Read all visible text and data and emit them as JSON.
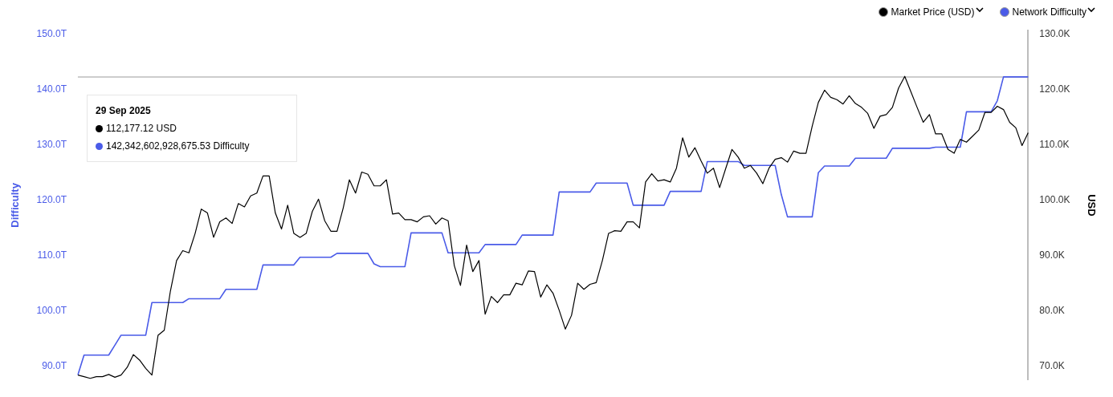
{
  "chart_data": {
    "type": "line",
    "categories": [
      null,
      null,
      null,
      null,
      null,
      null,
      null,
      null,
      null,
      null,
      null,
      null,
      null,
      null,
      null,
      null,
      null,
      null,
      null,
      null,
      null,
      null,
      null,
      null,
      null,
      null,
      null,
      null,
      null,
      null,
      null,
      null,
      null,
      null,
      null,
      null,
      null,
      null,
      null,
      null,
      null,
      null,
      null,
      null,
      null,
      null,
      null,
      null,
      null,
      null,
      null,
      null,
      null,
      null,
      null,
      null,
      null,
      null,
      null,
      null,
      null,
      null,
      null,
      null,
      null,
      null,
      null,
      null,
      null,
      null,
      null,
      null,
      null,
      null,
      null,
      null,
      null,
      null,
      null,
      null,
      null,
      null,
      null,
      null,
      null,
      null,
      null,
      null,
      null,
      null,
      null,
      null,
      null,
      null,
      null,
      null,
      null,
      null,
      null,
      null,
      null,
      null,
      null,
      null,
      null,
      null,
      null,
      null,
      null,
      null,
      null,
      null,
      null,
      null,
      null,
      null,
      null,
      null,
      null,
      null,
      null,
      null,
      null,
      null,
      null,
      null,
      null,
      null,
      null,
      null,
      null,
      null,
      null,
      null,
      null,
      null,
      null,
      null,
      null,
      null,
      null,
      null,
      null,
      null,
      null,
      null,
      null,
      null,
      null,
      null,
      null,
      null,
      null,
      null,
      null
    ],
    "series": [
      {
        "name": "Market Price (USD)",
        "color": "#000000",
        "axis": "y2",
        "values": [
          68.4,
          68.1,
          67.8,
          68.1,
          68.1,
          68.5,
          68.0,
          68.4,
          69.8,
          72.1,
          71.1,
          69.6,
          68.4,
          75.6,
          76.5,
          83.6,
          89.1,
          90.9,
          90.5,
          94.0,
          98.4,
          97.7,
          93.3,
          96.1,
          96.8,
          95.8,
          99.4,
          98.8,
          100.8,
          101.3,
          104.4,
          104.4,
          97.7,
          94.8,
          99.1,
          94.0,
          93.3,
          94.0,
          98.0,
          100.2,
          96.3,
          94.4,
          94.4,
          98.6,
          103.7,
          101.3,
          105.1,
          104.7,
          102.6,
          102.6,
          103.7,
          97.5,
          97.7,
          96.5,
          96.5,
          96.1,
          97.0,
          97.2,
          95.7,
          96.8,
          96.3,
          88.2,
          84.6,
          91.9,
          87.1,
          89.1,
          79.4,
          82.6,
          81.5,
          82.9,
          82.9,
          85.0,
          84.7,
          87.2,
          87.1,
          82.5,
          84.7,
          83.2,
          80.1,
          76.7,
          79.2,
          85.0,
          83.9,
          84.8,
          85.1,
          89.1,
          94.0,
          94.5,
          94.4,
          96.1,
          96.1,
          95.0,
          103.3,
          104.8,
          103.5,
          103.7,
          103.3,
          105.8,
          111.3,
          107.8,
          109.5,
          107.1,
          104.9,
          105.8,
          102.3,
          105.8,
          109.2,
          107.8,
          105.8,
          106.3,
          104.9,
          103.0,
          105.8,
          107.4,
          107.7,
          106.9,
          108.9,
          108.5,
          108.5,
          113.4,
          117.7,
          119.9,
          118.6,
          118.2,
          117.4,
          118.9,
          117.5,
          116.8,
          115.7,
          113.0,
          115.2,
          115.5,
          116.8,
          120.3,
          122.4,
          119.6,
          116.8,
          114.1,
          115.5,
          112.0,
          112.0,
          109.2,
          108.5,
          111.0,
          110.5,
          111.6,
          112.7,
          115.9,
          115.9,
          117.0,
          116.4,
          114.1,
          113.1,
          109.9,
          112.2
        ]
      },
      {
        "name": "Network Difficulty",
        "color": "#4a5be8",
        "axis": "y",
        "values": [
          88.4,
          92.0,
          92.0,
          92.0,
          92.0,
          92.0,
          93.8,
          95.6,
          95.6,
          95.6,
          95.6,
          95.6,
          101.5,
          101.5,
          101.5,
          101.5,
          101.5,
          101.5,
          102.2,
          102.2,
          102.2,
          102.2,
          102.2,
          102.2,
          103.9,
          103.9,
          103.9,
          103.9,
          103.9,
          103.9,
          108.3,
          108.3,
          108.3,
          108.3,
          108.3,
          108.3,
          109.7,
          109.7,
          109.7,
          109.7,
          109.7,
          109.7,
          110.4,
          110.4,
          110.4,
          110.4,
          110.4,
          110.4,
          108.5,
          108.0,
          108.0,
          108.0,
          108.0,
          108.0,
          114.1,
          114.1,
          114.1,
          114.1,
          114.1,
          114.1,
          110.5,
          110.5,
          110.5,
          110.5,
          110.5,
          110.5,
          112.0,
          112.0,
          112.0,
          112.0,
          112.0,
          112.0,
          113.7,
          113.7,
          113.7,
          113.7,
          113.7,
          113.7,
          121.5,
          121.5,
          121.5,
          121.5,
          121.5,
          121.5,
          123.1,
          123.1,
          123.1,
          123.1,
          123.1,
          123.1,
          119.1,
          119.1,
          119.1,
          119.1,
          119.1,
          119.1,
          121.6,
          121.6,
          121.6,
          121.6,
          121.6,
          121.6,
          127.0,
          127.0,
          127.0,
          127.0,
          127.0,
          127.0,
          126.3,
          126.3,
          126.3,
          126.3,
          126.3,
          126.3,
          121.0,
          117.0,
          117.0,
          117.0,
          117.0,
          117.0,
          125.0,
          126.2,
          126.2,
          126.2,
          126.2,
          126.2,
          127.6,
          127.6,
          127.6,
          127.6,
          127.6,
          127.6,
          129.4,
          129.4,
          129.4,
          129.4,
          129.4,
          129.4,
          129.4,
          129.6,
          129.6,
          129.6,
          129.6,
          129.6,
          136.0,
          136.0,
          136.0,
          136.0,
          136.0,
          138.0,
          142.3,
          142.3,
          142.3,
          142.3,
          142.3
        ]
      }
    ],
    "ylabel": "Difficulty",
    "y2label": "USD",
    "ylim": [
      87.5,
      150.7
    ],
    "yticks": [
      {
        "value": 90,
        "label": "90.0T"
      },
      {
        "value": 100,
        "label": "100.0T"
      },
      {
        "value": 110,
        "label": "110.0T"
      },
      {
        "value": 120,
        "label": "120.0T"
      },
      {
        "value": 130,
        "label": "130.0T"
      },
      {
        "value": 140,
        "label": "140.0T"
      },
      {
        "value": 150,
        "label": "150.0T"
      }
    ],
    "y2lim": [
      67.5,
      130.7
    ],
    "y2ticks": [
      {
        "value": 70,
        "label": "70.0K"
      },
      {
        "value": 80,
        "label": "80.0K"
      },
      {
        "value": 90,
        "label": "90.0K"
      },
      {
        "value": 100,
        "label": "100.0K"
      },
      {
        "value": 110,
        "label": "110.0K"
      },
      {
        "value": 120,
        "label": "120.0K"
      },
      {
        "value": 130,
        "label": "130.0K"
      }
    ],
    "ref_lines": [
      {
        "axis": "y",
        "value": 142.3,
        "color": "#bdbdbd"
      }
    ],
    "annotations": [
      "29 Sep 2025",
      "112,177.12 USD",
      "142,342,602,928,675.53 Difficulty"
    ],
    "legend": "top right",
    "tick_labels": "y",
    "marker": "none",
    "grid": false
  }
}
